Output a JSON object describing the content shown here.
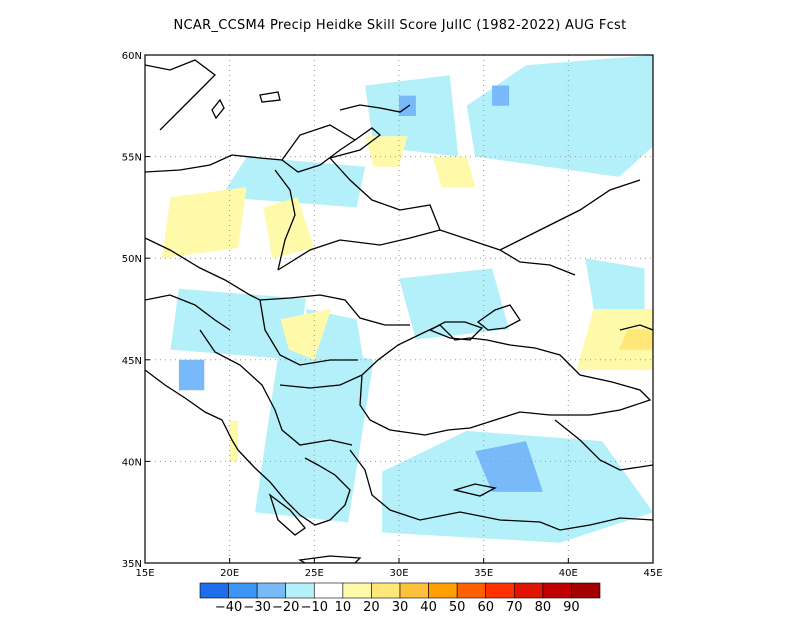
{
  "title": "NCAR_CCSM4 Precip Heidke Skill Score JulIC (1982-2022) AUG Fcst",
  "map": {
    "lon_range": [
      15,
      45
    ],
    "lat_range": [
      35,
      60
    ],
    "lon_ticks": [
      {
        "value": 15,
        "label": "15E"
      },
      {
        "value": 20,
        "label": "20E"
      },
      {
        "value": 25,
        "label": "25E"
      },
      {
        "value": 30,
        "label": "30E"
      },
      {
        "value": 35,
        "label": "35E"
      },
      {
        "value": 40,
        "label": "40E"
      },
      {
        "value": 45,
        "label": "45E"
      }
    ],
    "lat_ticks": [
      {
        "value": 35,
        "label": "35N"
      },
      {
        "value": 40,
        "label": "40N"
      },
      {
        "value": 45,
        "label": "45N"
      },
      {
        "value": 50,
        "label": "50N"
      },
      {
        "value": 55,
        "label": "55N"
      },
      {
        "value": 60,
        "label": "60N"
      }
    ],
    "grid": "dotted",
    "fields": [
      {
        "category": "-20",
        "lon": [
          21.5,
          27.0,
          28.5,
          23.0
        ],
        "lat": [
          37.5,
          37.0,
          45.0,
          46.0
        ]
      },
      {
        "category": "-20",
        "lon": [
          16.5,
          24.0,
          24.5,
          17.0
        ],
        "lat": [
          45.5,
          45.0,
          48.0,
          48.5
        ]
      },
      {
        "category": "-20",
        "lon": [
          25.0,
          28.0,
          27.5,
          24.5
        ],
        "lat": [
          45.0,
          44.5,
          47.0,
          47.5
        ]
      },
      {
        "category": "-20",
        "lon": [
          31.0,
          36.5,
          35.5,
          30.0
        ],
        "lat": [
          46.0,
          46.5,
          49.5,
          49.0
        ]
      },
      {
        "category": "-20",
        "lon": [
          28.5,
          33.5,
          33.0,
          28.0
        ],
        "lat": [
          55.5,
          55.0,
          59.0,
          58.5
        ]
      },
      {
        "category": "-20",
        "lon": [
          34.5,
          43.0,
          45.0,
          45.0,
          37.5,
          34.0
        ],
        "lat": [
          55.0,
          54.0,
          55.5,
          60.0,
          59.5,
          57.5
        ]
      },
      {
        "category": "-20",
        "lon": [
          29.0,
          39.5,
          45.0,
          42.0,
          34.0,
          29.0
        ],
        "lat": [
          36.5,
          36.0,
          37.5,
          41.0,
          41.5,
          39.5
        ]
      },
      {
        "category": "-20",
        "lon": [
          19.5,
          27.5,
          28.0,
          21.0
        ],
        "lat": [
          53.0,
          52.5,
          54.5,
          55.0
        ]
      },
      {
        "category": "-20",
        "lon": [
          41.5,
          44.5,
          44.5,
          41.0
        ],
        "lat": [
          47.5,
          47.0,
          49.5,
          50.0
        ]
      },
      {
        "category": "-30",
        "lon": [
          35.5,
          38.5,
          37.5,
          34.5
        ],
        "lat": [
          38.5,
          38.5,
          41.0,
          40.5
        ]
      },
      {
        "category": "-30",
        "lon": [
          17.0,
          18.5,
          18.5,
          17.0
        ],
        "lat": [
          43.5,
          43.5,
          45.0,
          45.0
        ]
      },
      {
        "category": "-30",
        "lon": [
          35.5,
          36.5,
          36.5,
          35.5
        ],
        "lat": [
          57.5,
          57.5,
          58.5,
          58.5
        ]
      },
      {
        "category": "-30",
        "lon": [
          30.0,
          31.0,
          31.0,
          30.0
        ],
        "lat": [
          57.0,
          57.0,
          58.0,
          58.0
        ]
      },
      {
        "category": "10",
        "lon": [
          16.0,
          20.5,
          21.0,
          16.5
        ],
        "lat": [
          50.0,
          50.5,
          53.5,
          53.0
        ]
      },
      {
        "category": "10",
        "lon": [
          22.5,
          25.0,
          24.0,
          22.0
        ],
        "lat": [
          50.0,
          50.5,
          53.0,
          52.5
        ]
      },
      {
        "category": "10",
        "lon": [
          23.5,
          25.0,
          26.0,
          23.0
        ],
        "lat": [
          45.5,
          45.0,
          47.5,
          47.0
        ]
      },
      {
        "category": "10",
        "lon": [
          40.5,
          45.0,
          45.0,
          41.5
        ],
        "lat": [
          44.5,
          44.5,
          47.5,
          47.5
        ]
      },
      {
        "category": "10",
        "lon": [
          28.5,
          30.0,
          30.5,
          28.0
        ],
        "lat": [
          54.5,
          54.5,
          56.0,
          56.0
        ]
      },
      {
        "category": "10",
        "lon": [
          32.5,
          34.5,
          34.0,
          32.0
        ],
        "lat": [
          53.5,
          53.5,
          55.0,
          55.0
        ]
      },
      {
        "category": "10",
        "lon": [
          20.0,
          20.5,
          20.5,
          20.0
        ],
        "lat": [
          40.0,
          40.0,
          42.0,
          42.0
        ]
      },
      {
        "category": "20",
        "lon": [
          43.0,
          45.0,
          45.0,
          43.5
        ],
        "lat": [
          45.5,
          45.5,
          46.5,
          46.5
        ]
      }
    ]
  },
  "colorbar": {
    "categories": [
      "-40",
      "-30",
      "-20",
      "-10",
      "10",
      "20",
      "30",
      "40",
      "50",
      "60",
      "70",
      "80",
      "90"
    ],
    "labels": [
      "-40",
      "-30",
      "-20",
      "-10",
      "10",
      "20",
      "30",
      "40",
      "50",
      "60",
      "70",
      "80",
      "90"
    ],
    "colors": [
      "#1e6eeb",
      "#3c96f5",
      "#78b9fa",
      "#b4f0fa",
      "#ffffff",
      "#fffaaa",
      "#ffe878",
      "#ffc03c",
      "#ffa000",
      "#ff6000",
      "#ff3200",
      "#e11400",
      "#c00000",
      "#a50000"
    ]
  },
  "field_colors": {
    "-20": "#b4f0fa",
    "-30": "#78b9fa",
    "10": "#fffaaa",
    "20": "#ffe878"
  }
}
